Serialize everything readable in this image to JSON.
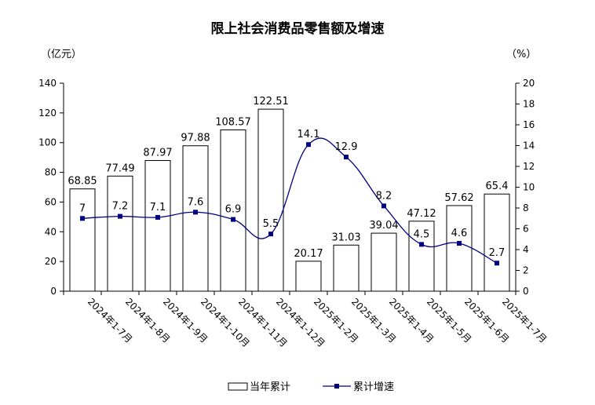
{
  "chart_data": {
    "type": "bar",
    "title": "限上社会消费品零售额及增速",
    "categories": [
      "2024年1-7月",
      "2024年1-8月",
      "2024年1-9月",
      "2024年1-10月",
      "2024年1-11月",
      "2024年1-12月",
      "2025年1-2月",
      "2025年1-3月",
      "2025年1-4月",
      "2025年1-5月",
      "2025年1-6月",
      "2025年1-7月"
    ],
    "series": [
      {
        "name": "当年累计",
        "type": "bar",
        "axis": "left",
        "values": [
          68.85,
          77.49,
          87.97,
          97.88,
          108.57,
          122.51,
          20.17,
          31.03,
          39.04,
          47.12,
          57.62,
          65.4
        ],
        "labels": [
          "68.85",
          "77.49",
          "87.97",
          "97.88",
          "108.57",
          "122.51",
          "20.17",
          "31.03",
          "39.04",
          "47.12",
          "57.62",
          "65.4"
        ]
      },
      {
        "name": "累计增速",
        "type": "line",
        "axis": "right",
        "color": "#000080",
        "values": [
          7,
          7.2,
          7.1,
          7.6,
          6.9,
          5.5,
          14.1,
          12.9,
          8.2,
          4.5,
          4.6,
          2.7
        ],
        "labels": [
          "7",
          "7.2",
          "7.1",
          "7.6",
          "6.9",
          "5.5",
          "14.1",
          "12.9",
          "8.2",
          "4.5",
          "4.6",
          "2.7"
        ]
      }
    ],
    "y_left": {
      "unit": "（亿元）",
      "ylim": [
        0,
        140
      ],
      "ticks": [
        "0",
        "20",
        "40",
        "60",
        "80",
        "100",
        "120",
        "140"
      ]
    },
    "y_right": {
      "unit": "（%）",
      "ylim": [
        0,
        20
      ],
      "ticks": [
        "0",
        "2",
        "4",
        "6",
        "8",
        "10",
        "12",
        "14",
        "16",
        "18",
        "20"
      ]
    },
    "grid": false,
    "legend": "bottom"
  }
}
